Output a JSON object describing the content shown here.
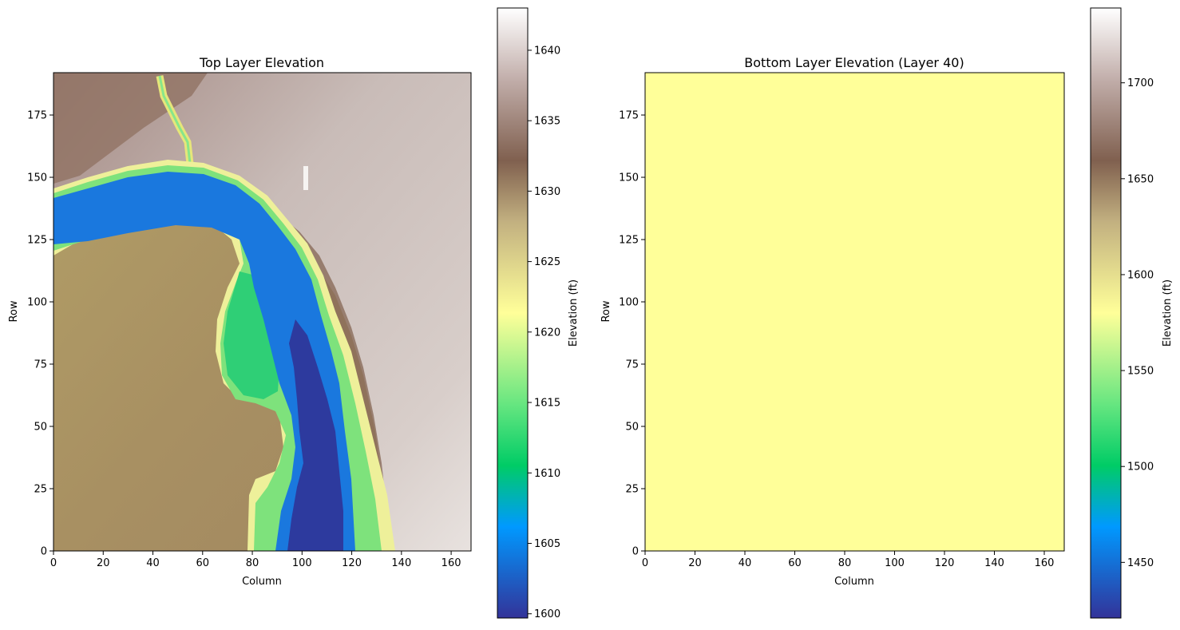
{
  "chart_data": [
    {
      "type": "heatmap",
      "title": "Top Layer Elevation",
      "xlabel": "Column",
      "ylabel": "Row",
      "xlim": [
        0,
        168
      ],
      "ylim": [
        0,
        192
      ],
      "xticks": [
        0,
        20,
        40,
        60,
        80,
        100,
        120,
        140,
        160
      ],
      "yticks": [
        0,
        25,
        50,
        75,
        100,
        125,
        150,
        175
      ],
      "colorbar": {
        "label": "Elevation (ft)",
        "range": [
          1599.7,
          1643
        ],
        "ticks": [
          1600,
          1605,
          1610,
          1615,
          1620,
          1625,
          1630,
          1635,
          1640
        ]
      },
      "colormap": "terrain",
      "river_centerline_cols": [
        [
          0,
          109
        ],
        [
          12,
          107
        ],
        [
          25,
          105
        ],
        [
          37,
          106
        ],
        [
          50,
          107
        ],
        [
          62,
          105
        ],
        [
          75,
          102
        ],
        [
          87,
          98
        ],
        [
          100,
          94
        ],
        [
          112,
          88
        ],
        [
          125,
          80
        ],
        [
          135,
          70
        ],
        [
          143,
          55
        ],
        [
          147,
          40
        ],
        [
          145,
          20
        ],
        [
          140,
          5
        ],
        [
          135,
          0
        ]
      ],
      "features": {
        "floodplain_value": 1626,
        "channel_value": 1604,
        "deep_channel_value": 1601,
        "upland_value": 1638
      }
    },
    {
      "type": "heatmap",
      "title": "Bottom Layer Elevation (Layer 40)",
      "xlabel": "Column",
      "ylabel": "Row",
      "xlim": [
        0,
        168
      ],
      "ylim": [
        0,
        192
      ],
      "xticks": [
        0,
        20,
        40,
        60,
        80,
        100,
        120,
        140,
        160
      ],
      "yticks": [
        0,
        25,
        50,
        75,
        100,
        125,
        150,
        175
      ],
      "colorbar": {
        "label": "Elevation (ft)",
        "range": [
          1421,
          1739
        ],
        "ticks": [
          1450,
          1500,
          1550,
          1600,
          1650,
          1700
        ]
      },
      "colormap": "terrain",
      "uniform_value": 1580
    }
  ]
}
